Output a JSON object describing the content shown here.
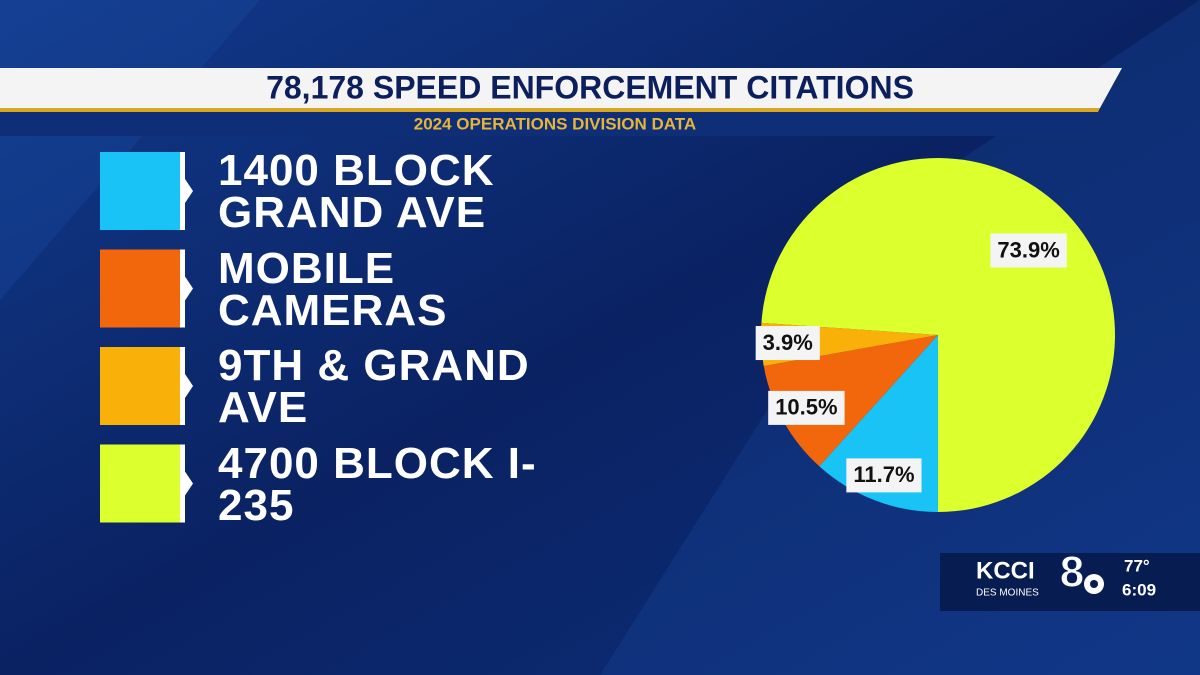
{
  "chart_data": {
    "type": "pie",
    "title": "78,178 SPEED ENFORCEMENT CITATIONS",
    "subtitle": "2024 OPERATIONS DIVISION DATA",
    "categories": [
      "1400 BLOCK GRAND AVE",
      "MOBILE CAMERAS",
      "9TH & GRAND AVE",
      "4700 BLOCK I-235"
    ],
    "values": [
      11.7,
      10.5,
      3.9,
      73.9
    ],
    "value_labels": [
      "11.7%",
      "10.5%",
      "3.9%",
      "73.9%"
    ],
    "colors": [
      "#19c3f5",
      "#f2670c",
      "#f9b10a",
      "#dcff2e"
    ],
    "legend": "left"
  },
  "station": {
    "name": "KCCI",
    "city": "DES MOINES",
    "channel": "8",
    "temperature": "77°",
    "time": "6:09"
  }
}
